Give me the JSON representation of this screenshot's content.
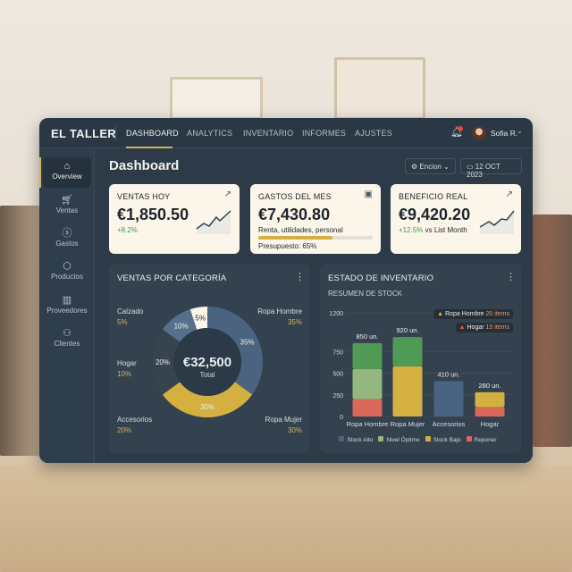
{
  "header": {
    "logo": "EL TALLER",
    "tabs": [
      "DASHBOARD",
      "ANALYTICS",
      "INVENTARIO",
      "INFORMES",
      "AJUSTES"
    ],
    "active_tab": "DASHBOARD",
    "user": "Sofia R."
  },
  "sidebar": {
    "items": [
      {
        "label": "Overview",
        "icon": "home-icon"
      },
      {
        "label": "Ventas",
        "icon": "cart-icon"
      },
      {
        "label": "Gastos",
        "icon": "dollar-icon"
      },
      {
        "label": "Productos",
        "icon": "box-icon"
      },
      {
        "label": "Proveedores",
        "icon": "building-icon"
      },
      {
        "label": "Clientes",
        "icon": "users-icon"
      }
    ]
  },
  "page": {
    "title": "Dashboard",
    "filter": "Encion",
    "date": "12 OCT 2023"
  },
  "cards": [
    {
      "title": "VENTAS HOY",
      "value": "€1,850.50",
      "delta": "+8.2%"
    },
    {
      "title": "GASTOS DEL MES",
      "value": "€7,430.80",
      "sub": "Renta, utilidades, personal",
      "budget": "Presupuesto: 65%",
      "budget_pct": 65
    },
    {
      "title": "BENEFICIO REAL",
      "value": "€9,420.20",
      "delta": "+12.5%",
      "delta_note": "vs List Month"
    }
  ],
  "colors": {
    "accent": "#d4b15a",
    "panel": "#2d3b48",
    "card": "#fbf6e9",
    "blue": "#4a6380",
    "gold": "#d4b040",
    "green": "#4f9a55",
    "lightgreen": "#93b77e",
    "red": "#d9685a"
  },
  "chart_data": [
    {
      "type": "pie",
      "title": "VENTAS POR CATEGORÍA",
      "center_value": "€32,500",
      "center_label": "Total",
      "slices": [
        {
          "label": "Ropa Hombre",
          "value": 35,
          "color": "#4a6380"
        },
        {
          "label": "Ropa Mujer",
          "value": 30,
          "color": "#d4b040"
        },
        {
          "label": "Accesorios",
          "value": 20,
          "color": "#37434e"
        },
        {
          "label": "Hogar",
          "value": 10,
          "color": "#56708c"
        },
        {
          "label": "Calzado",
          "value": 5,
          "color": "#fbf6e9"
        }
      ],
      "callouts": [
        {
          "label": "Calzado",
          "pct": "5%"
        },
        {
          "label": "Hogar",
          "pct": "10%"
        },
        {
          "label": "Accesorios",
          "pct": "20%"
        },
        {
          "label": "Ropa Hombre",
          "pct": "35%"
        },
        {
          "label": "Ropa Mujer",
          "pct": "30%"
        }
      ]
    },
    {
      "type": "bar",
      "title": "ESTADO DE INVENTARIO",
      "subtitle": "RESUMEN DE STOCK",
      "ylim": [
        0,
        1200
      ],
      "yticks": [
        0,
        250,
        500,
        750,
        1200
      ],
      "categories": [
        "Ropa Hombre",
        "Ropa Mujer",
        "Accesorios",
        "Hogar"
      ],
      "totals": [
        "850 un.",
        "920 un.",
        "410 un.",
        "280 un."
      ],
      "stacks": [
        [
          {
            "value": 200,
            "color": "#d9685a"
          },
          {
            "value": 350,
            "color": "#93b77e"
          },
          {
            "value": 300,
            "color": "#4f9a55"
          }
        ],
        [
          {
            "value": 580,
            "color": "#d4b040"
          },
          {
            "value": 340,
            "color": "#4f9a55"
          }
        ],
        [
          {
            "value": 410,
            "color": "#4a6380"
          }
        ],
        [
          {
            "value": 110,
            "color": "#d9685a"
          },
          {
            "value": 170,
            "color": "#d4b040"
          }
        ]
      ],
      "legend": [
        {
          "name": "Stock Alto",
          "color": "#4a6380"
        },
        {
          "name": "Nivel Óptimo",
          "color": "#93b77e"
        },
        {
          "name": "Stock Bajo",
          "color": "#d4b040"
        },
        {
          "name": "Reponer",
          "color": "#d9685a"
        }
      ],
      "alerts": [
        {
          "label": "Ropa Hombre",
          "count": "20 items",
          "color": "#e6b93a"
        },
        {
          "label": "Hogar",
          "count": "15 items",
          "color": "#e0604f"
        }
      ]
    }
  ]
}
